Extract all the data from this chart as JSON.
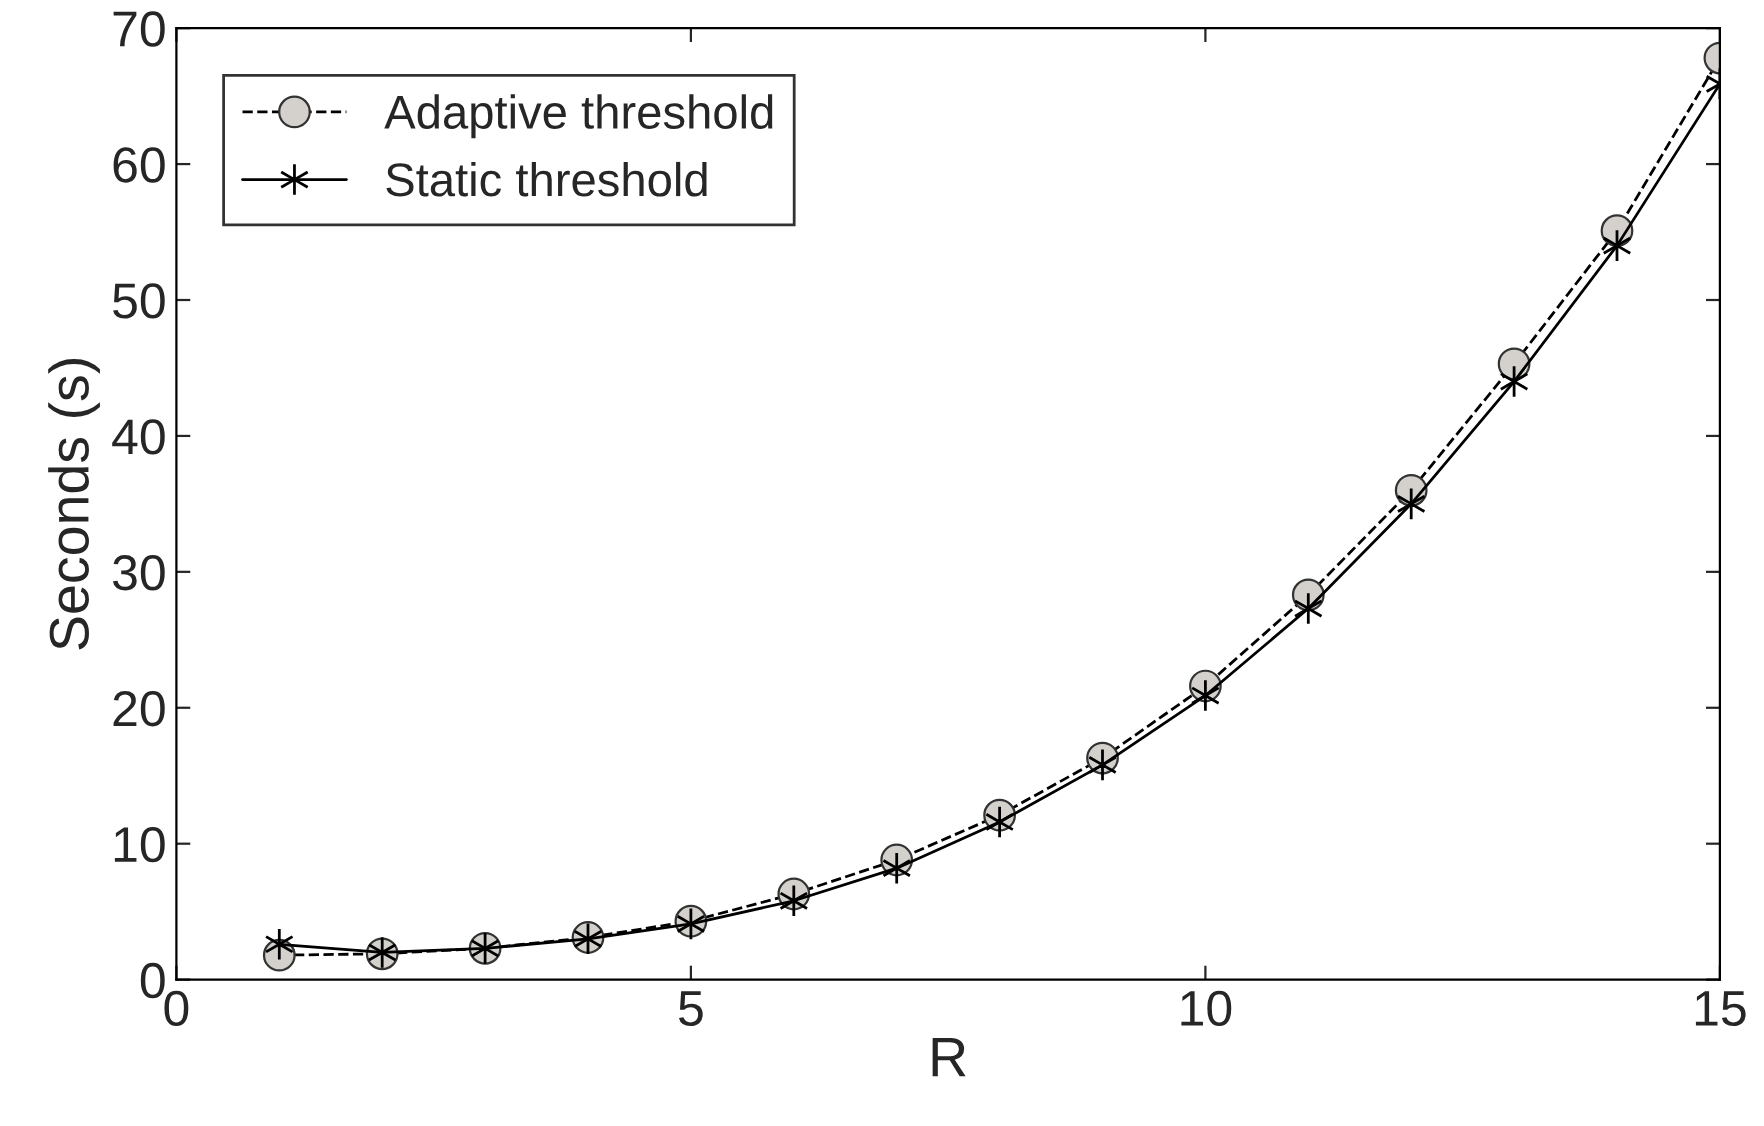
{
  "chart_data": {
    "type": "line",
    "xlabel": "R",
    "ylabel": "Seconds (s)",
    "x": [
      1,
      2,
      3,
      4,
      5,
      6,
      7,
      8,
      9,
      10,
      11,
      12,
      13,
      14,
      15
    ],
    "series": [
      {
        "name": "Adaptive threshold",
        "color": "#000000",
        "marker": "circle",
        "line_style": "dashed",
        "values": [
          1.8,
          1.9,
          2.3,
          3.1,
          4.3,
          6.3,
          8.8,
          12.1,
          16.3,
          21.6,
          28.3,
          36.0,
          45.3,
          55.1,
          67.8
        ]
      },
      {
        "name": "Static threshold",
        "color": "#000000",
        "marker": "cross",
        "line_style": "solid",
        "values": [
          2.6,
          2.0,
          2.3,
          3.0,
          4.1,
          5.8,
          8.2,
          11.6,
          15.8,
          20.9,
          27.3,
          35.0,
          44.0,
          54.0,
          65.9
        ]
      }
    ],
    "xlim": [
      0,
      15
    ],
    "ylim": [
      0,
      70
    ],
    "xticks": [
      0,
      5,
      10,
      15
    ],
    "yticks": [
      0,
      10,
      20,
      30,
      40,
      50,
      60,
      70
    ],
    "grid": false,
    "legend": "top left"
  }
}
